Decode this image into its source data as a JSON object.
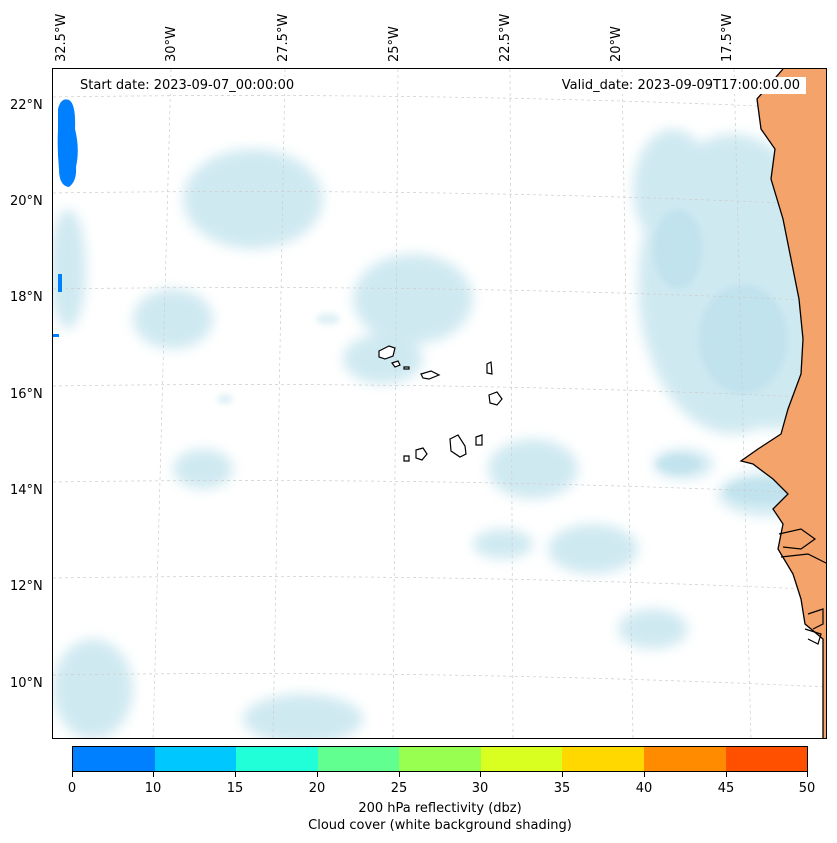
{
  "map": {
    "start_date": "Start date: 2023-09-07_00:00:00",
    "valid_date": "Valid_date: 2023-09-09T17:00:00.00",
    "latitude_labels": [
      "22°N",
      "20°N",
      "18°N",
      "16°N",
      "14°N",
      "12°N",
      "10°N"
    ],
    "longitude_labels": [
      "32.5°W",
      "30°W",
      "27.5°W",
      "25°W",
      "22.5°W",
      "20°W",
      "17.5°W"
    ],
    "land_color": "#f4a36a",
    "cloud_color": "#a9d8e6",
    "coastline_color": "#000000",
    "grid_color": "#cccccc"
  },
  "colorbar": {
    "tick_labels": [
      "0",
      "10",
      "15",
      "20",
      "25",
      "30",
      "35",
      "40",
      "45",
      "50"
    ],
    "colors": [
      "#0080ff",
      "#00c8ff",
      "#20ffd8",
      "#60ff90",
      "#98ff50",
      "#d8ff20",
      "#ffd800",
      "#ff8c00",
      "#ff5000"
    ],
    "label_line1": "200 hPa reflectivity (dbz)",
    "label_line2": "Cloud cover (white background shading)"
  }
}
